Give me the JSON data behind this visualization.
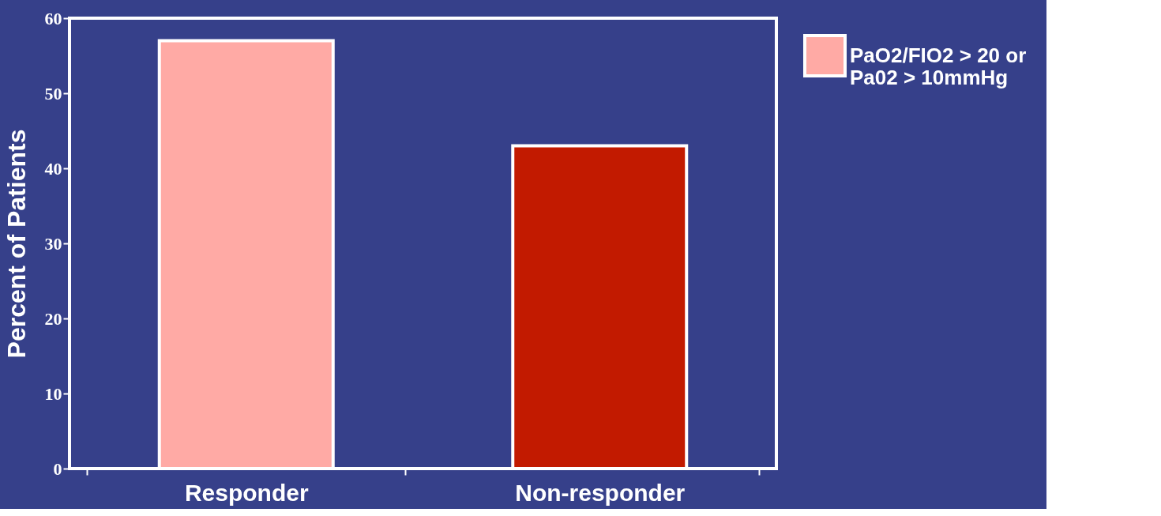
{
  "chart_data": {
    "type": "bar",
    "categories": [
      "Responder",
      "Non-responder"
    ],
    "ylabel": "Percent of Patients",
    "series": [
      {
        "name": "PaO2/FIO2 > 20 or Pa02 > 10mmHg",
        "color": "#ffaaa5",
        "values": [
          57,
          null
        ]
      },
      {
        "color": "#c21a00",
        "values": [
          null,
          43
        ]
      }
    ],
    "ylim": [
      0,
      60
    ],
    "yticks": [
      0,
      10,
      20,
      30,
      40,
      50,
      60
    ],
    "grid": false,
    "legend": "top right"
  }
}
